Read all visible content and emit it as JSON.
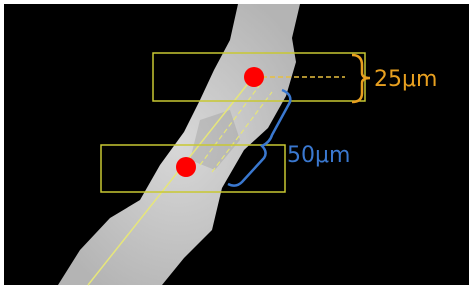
{
  "annotations": [
    {
      "label": "25μm"
    },
    {
      "label": "50μm"
    }
  ]
}
